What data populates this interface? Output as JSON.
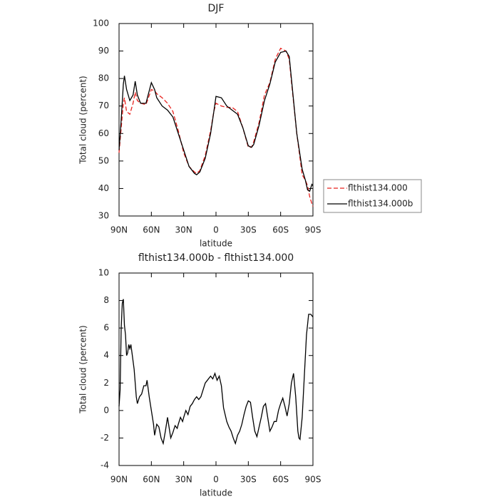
{
  "chart_data": [
    {
      "type": "line",
      "title": "DJF",
      "xlabel": "latitude",
      "ylabel": "Total cloud (percent)",
      "x": [
        90,
        88,
        86,
        85,
        83,
        80,
        77,
        75,
        73,
        70,
        65,
        60,
        57,
        55,
        50,
        45,
        40,
        35,
        30,
        25,
        20,
        18,
        15,
        10,
        5,
        2,
        0,
        -5,
        -10,
        -15,
        -20,
        -25,
        -30,
        -33,
        -35,
        -40,
        -45,
        -50,
        -55,
        -60,
        -65,
        -68,
        -70,
        -75,
        -80,
        -83,
        -85,
        -87,
        -89,
        -90
      ],
      "series": [
        {
          "name": "flthist134.000",
          "color": "#e8231f",
          "dash": true,
          "values": [
            53,
            62,
            71,
            73,
            68,
            67,
            71,
            75,
            72,
            71,
            70.5,
            76,
            75.5,
            74.5,
            73,
            71,
            68,
            61,
            53,
            48,
            46,
            45.5,
            46.5,
            52,
            61,
            68,
            71,
            70,
            69.5,
            69.5,
            68,
            62,
            55,
            55,
            57,
            64,
            74,
            78.5,
            87,
            91,
            90,
            87,
            79,
            60,
            45,
            43,
            41,
            37,
            34.5,
            33.5
          ]
        },
        {
          "name": "flthist134.000b",
          "color": "#000000",
          "dash": false,
          "values": [
            54,
            65,
            78,
            81,
            76,
            72,
            74,
            79,
            74,
            71,
            71,
            78.5,
            76,
            73,
            70,
            68.5,
            66,
            60,
            54,
            48,
            45.5,
            45,
            46,
            51,
            60,
            68,
            73.5,
            73,
            70,
            68.5,
            67,
            62,
            55.5,
            55,
            56,
            63,
            72,
            78,
            86,
            89.5,
            90,
            88,
            80,
            60,
            47,
            43,
            39.5,
            39,
            41.5,
            41
          ]
        }
      ],
      "xlim": [
        90,
        -90
      ],
      "ylim": [
        30,
        100
      ],
      "xticks": [
        {
          "value": 90,
          "label": "90N"
        },
        {
          "value": 60,
          "label": "60N"
        },
        {
          "value": 30,
          "label": "30N"
        },
        0,
        {
          "value": -30,
          "label": "30S"
        },
        {
          "value": -60,
          "label": "60S"
        },
        {
          "value": -90,
          "label": "90S"
        }
      ],
      "yticks": [
        30,
        40,
        50,
        60,
        70,
        80,
        90,
        100
      ],
      "legend": "outside right"
    },
    {
      "type": "line",
      "title": "flthist134.000b - flthist134.000",
      "xlabel": "latitude",
      "ylabel": "Total cloud (percent)",
      "x": [
        90,
        89,
        88,
        87,
        86,
        85,
        84,
        83,
        82,
        81,
        80,
        79,
        78,
        76,
        74,
        73,
        71,
        69,
        67,
        65,
        64,
        62,
        60,
        58,
        57,
        55,
        53,
        51,
        49,
        47,
        45,
        44,
        42,
        40,
        38,
        36,
        35,
        33,
        31,
        30,
        28,
        26,
        24,
        22,
        20,
        18,
        16,
        14,
        12,
        10,
        8,
        5,
        3,
        1,
        -1,
        -3,
        -5,
        -7,
        -10,
        -12,
        -14,
        -16,
        -18,
        -20,
        -22,
        -24,
        -26,
        -28,
        -30,
        -32,
        -34,
        -36,
        -38,
        -40,
        -42,
        -44,
        -46,
        -48,
        -50,
        -52,
        -54,
        -56,
        -58,
        -60,
        -62,
        -64,
        -66,
        -68,
        -70,
        -72,
        -74,
        -76,
        -77,
        -78,
        -80,
        -82,
        -84,
        -86,
        -88,
        -90
      ],
      "series": [
        {
          "name": null,
          "color": "#000000",
          "dash": false,
          "values": [
            0.3,
            1.5,
            6,
            7.8,
            8.1,
            6.2,
            5.5,
            4,
            4.2,
            4.8,
            4.5,
            4.8,
            4.2,
            3,
            1,
            0.5,
            1,
            1.2,
            1.8,
            1.8,
            2.2,
            1,
            0,
            -1,
            -1.8,
            -1,
            -1.2,
            -2,
            -2.4,
            -1.5,
            -0.5,
            -1,
            -2,
            -1.6,
            -1.1,
            -1.3,
            -1,
            -0.5,
            -0.8,
            -0.5,
            0,
            -0.3,
            0.3,
            0.5,
            0.8,
            1,
            0.8,
            1,
            1.5,
            2,
            2.2,
            2.5,
            2.3,
            2.7,
            2.2,
            2.5,
            1.8,
            0.2,
            -0.8,
            -1.2,
            -1.5,
            -2,
            -2.4,
            -1.8,
            -1.5,
            -1,
            -0.3,
            0.3,
            0.7,
            0.6,
            -0.5,
            -1.5,
            -1.9,
            -1.2,
            -0.5,
            0.3,
            0.5,
            -0.5,
            -1.5,
            -1.2,
            -0.8,
            -0.8,
            0,
            0.5,
            0.9,
            0.3,
            -0.4,
            0.5,
            2,
            2.7,
            1,
            -1.5,
            -2,
            -2.1,
            -0.5,
            2.5,
            5.5,
            7,
            7,
            6.8
          ]
        }
      ],
      "xlim": [
        90,
        -90
      ],
      "ylim": [
        -4,
        10
      ],
      "xticks": [
        {
          "value": 90,
          "label": "90N"
        },
        {
          "value": 60,
          "label": "60N"
        },
        {
          "value": 30,
          "label": "30N"
        },
        0,
        {
          "value": -30,
          "label": "30S"
        },
        {
          "value": -60,
          "label": "60S"
        },
        {
          "value": -90,
          "label": "90S"
        }
      ],
      "yticks": [
        -4,
        -2,
        0,
        2,
        4,
        6,
        8,
        10
      ]
    }
  ]
}
